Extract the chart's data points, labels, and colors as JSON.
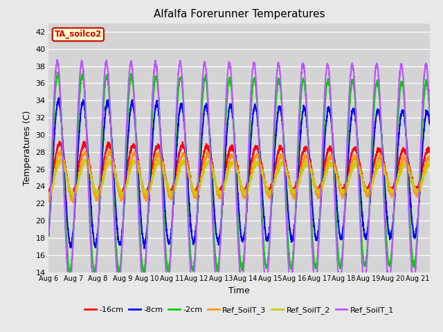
{
  "title": "Alfalfa Forerunner Temperatures",
  "xlabel": "Time",
  "ylabel": "Temperatures (C)",
  "ylim": [
    14,
    43
  ],
  "bg_color": "#e8e8e8",
  "plot_bg_color": "#d4d4d4",
  "annotation_text": "TA_soilco2",
  "annotation_bg": "#ffffcc",
  "annotation_border": "#cc0000",
  "series": {
    "-16cm": {
      "color": "#ff0000",
      "lw": 1.5,
      "base": 26.0,
      "amp": 3.5,
      "phase": -0.3,
      "decay": 0.018
    },
    "-8cm": {
      "color": "#0000ff",
      "lw": 1.5,
      "base": 25.5,
      "amp": 9.0,
      "phase": 0.05,
      "decay": 0.01
    },
    "-2cm": {
      "color": "#00cc00",
      "lw": 1.5,
      "base": 25.5,
      "amp": 12.0,
      "phase": 0.15,
      "decay": 0.005
    },
    "Ref_SoilT_3": {
      "color": "#ff9900",
      "lw": 1.5,
      "base": 25.2,
      "amp": 3.0,
      "phase": -0.4,
      "decay": 0.018
    },
    "Ref_SoilT_2": {
      "color": "#cccc00",
      "lw": 1.5,
      "base": 25.0,
      "amp": 2.2,
      "phase": -0.5,
      "decay": 0.018
    },
    "Ref_SoilT_1": {
      "color": "#bb55ff",
      "lw": 1.5,
      "base": 25.5,
      "amp": 13.5,
      "phase": 0.2,
      "decay": 0.002
    }
  },
  "legend_order": [
    "-16cm",
    "-8cm",
    "-2cm",
    "Ref_SoilT_3",
    "Ref_SoilT_2",
    "Ref_SoilT_1"
  ],
  "x_tick_labels": [
    "Aug 6",
    "Aug 7",
    "Aug 8",
    "Aug 9",
    "Aug 10",
    "Aug 11",
    "Aug 12",
    "Aug 13",
    "Aug 14",
    "Aug 15",
    "Aug 16",
    "Aug 17",
    "Aug 18",
    "Aug 19",
    "Aug 20",
    "Aug 21"
  ]
}
